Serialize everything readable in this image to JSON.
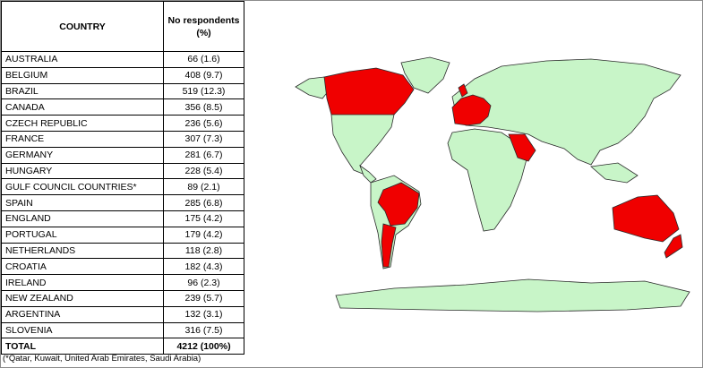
{
  "table": {
    "header": [
      "COUNTRY",
      "No respondents (%)"
    ],
    "rows": [
      [
        "AUSTRALIA",
        "66 (1.6)"
      ],
      [
        "BELGIUM",
        "408 (9.7)"
      ],
      [
        "BRAZIL",
        "519 (12.3)"
      ],
      [
        "CANADA",
        "356 (8.5)"
      ],
      [
        "CZECH REPUBLIC",
        "236 (5.6)"
      ],
      [
        "FRANCE",
        "307 (7.3)"
      ],
      [
        "GERMANY",
        "281 (6.7)"
      ],
      [
        "HUNGARY",
        "228 (5.4)"
      ],
      [
        "GULF COUNCIL COUNTRIES*",
        "89 (2.1)"
      ],
      [
        "SPAIN",
        "285 (6.8)"
      ],
      [
        "ENGLAND",
        "175 (4.2)"
      ],
      [
        "PORTUGAL",
        "179 (4.2)"
      ],
      [
        "NETHERLANDS",
        "118 (2.8)"
      ],
      [
        "CROATIA",
        "182 (4.3)"
      ],
      [
        "IRELAND",
        "96 (2.3)"
      ],
      [
        "NEW ZEALAND",
        "239 (5.7)"
      ],
      [
        "ARGENTINA",
        "132 (3.1)"
      ],
      [
        "SLOVENIA",
        "316 (7.5)"
      ]
    ],
    "total": [
      "TOTAL",
      "4212 (100%)"
    ],
    "footnote": "(*Qatar, Kuwait, United Arab Emirates, Saudi Arabia)"
  }
}
